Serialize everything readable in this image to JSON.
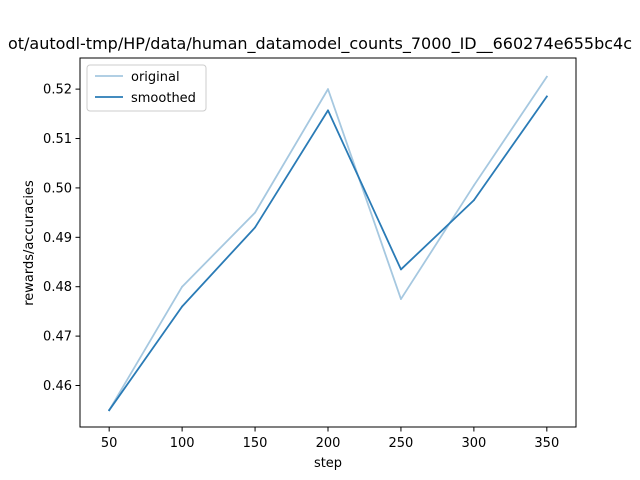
{
  "chart_data": {
    "type": "line",
    "title": "ot/autodl-tmp/HP/data/human_datamodel_counts_7000_ID__660274e655bc4c",
    "xlabel": "step",
    "ylabel": "rewards/accuracies",
    "x": [
      50,
      100,
      150,
      200,
      250,
      300,
      350
    ],
    "xlim": [
      30,
      370
    ],
    "ylim": [
      0.4516,
      0.5263
    ],
    "xticks": [
      50,
      100,
      150,
      200,
      250,
      300,
      350
    ],
    "yticks": [
      0.46,
      0.47,
      0.48,
      0.49,
      0.5,
      0.51,
      0.52
    ],
    "ytick_labels": [
      "0.46",
      "0.47",
      "0.48",
      "0.49",
      "0.50",
      "0.51",
      "0.52"
    ],
    "grid": false,
    "legend_position": "upper-left",
    "series": [
      {
        "name": "original",
        "color": "#a6c8e0",
        "values": [
          0.455,
          0.48,
          0.495,
          0.52,
          0.4775,
          0.5005,
          0.5225
        ]
      },
      {
        "name": "smoothed",
        "color": "#2a7bb6",
        "values": [
          0.455,
          0.476,
          0.492,
          0.5157,
          0.4835,
          0.4975,
          0.5185
        ]
      }
    ]
  }
}
